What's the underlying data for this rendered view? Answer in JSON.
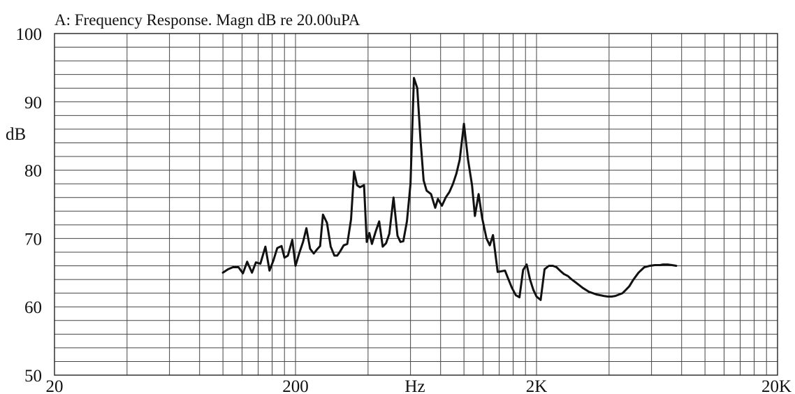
{
  "chart_data": {
    "type": "line",
    "title": "A: Frequency Response. Magn dB re 20.00uPA",
    "xlabel": "Hz",
    "ylabel": "dB",
    "xscale": "log",
    "xlim": [
      20,
      20000
    ],
    "ylim": [
      50,
      100
    ],
    "grid": true,
    "x_tick_labels": [
      {
        "value": 20,
        "label": "20"
      },
      {
        "value": 200,
        "label": "200"
      },
      {
        "value": 2000,
        "label": "2K"
      },
      {
        "value": 20000,
        "label": "20K"
      }
    ],
    "y_ticks": [
      50,
      60,
      70,
      80,
      90,
      100
    ],
    "series": [
      {
        "x": [
          100,
          105,
          110,
          116,
          121,
          126,
          132,
          137,
          143,
          150,
          156,
          162,
          168,
          175,
          180,
          186,
          194,
          200,
          207,
          215,
          222,
          230,
          238,
          247,
          253,
          260,
          270,
          280,
          290,
          298,
          305,
          317,
          328,
          340,
          350,
          360,
          370,
          385,
          395,
          405,
          415,
          430,
          445,
          460,
          475,
          490,
          510,
          530,
          545,
          560,
          580,
          600,
          620,
          640,
          660,
          680,
          700,
          730,
          760,
          780,
          810,
          840,
          870,
          900,
          930,
          960,
          1000,
          1040,
          1080,
          1110,
          1150,
          1190,
          1240,
          1280,
          1320,
          1380,
          1430,
          1480,
          1530,
          1580,
          1640,
          1700,
          1760,
          1820,
          1880,
          1940,
          2000,
          2080,
          2160,
          2250,
          2340,
          2420,
          2520,
          2600,
          2700,
          2800,
          2900,
          3000,
          3100,
          3200,
          3300,
          3420,
          3550,
          3680,
          3800,
          3950,
          4100,
          4250,
          4400,
          4550,
          4700,
          4850,
          5050,
          5300,
          5600,
          5900,
          6200,
          6500,
          6700,
          7000,
          7300,
          7600
        ],
        "y": [
          65.0,
          65.5,
          65.8,
          65.8,
          64.9,
          66.6,
          65.0,
          66.5,
          66.3,
          68.8,
          65.3,
          66.8,
          68.6,
          68.9,
          67.2,
          67.5,
          69.8,
          66.0,
          67.8,
          69.5,
          71.5,
          68.5,
          67.8,
          68.5,
          68.9,
          73.5,
          72.3,
          68.8,
          67.5,
          67.5,
          68.0,
          69.0,
          69.2,
          72.8,
          79.8,
          77.8,
          77.5,
          77.8,
          69.5,
          70.8,
          69.2,
          71.0,
          72.5,
          68.8,
          69.3,
          70.7,
          76.0,
          70.4,
          69.5,
          69.6,
          72.5,
          78.0,
          93.5,
          92.0,
          84.5,
          78.5,
          77.0,
          76.5,
          74.5,
          75.8,
          74.8,
          76.0,
          76.8,
          78.0,
          79.5,
          81.5,
          86.8,
          81.5,
          77.8,
          73.3,
          76.5,
          73.0,
          70.0,
          69.0,
          70.5,
          65.1,
          65.2,
          65.3,
          64.0,
          62.8,
          61.7,
          61.4,
          65.4,
          66.2,
          64.0,
          62.5,
          61.5,
          61.0,
          65.5,
          66.0,
          66.0,
          65.8,
          65.2,
          64.8,
          64.5,
          64.0,
          63.6,
          63.2,
          62.8,
          62.5,
          62.2,
          62.0,
          61.8,
          61.7,
          61.6,
          61.5,
          61.5,
          61.6,
          61.8,
          62.0,
          62.5,
          63.0,
          64.0,
          65.0,
          65.8,
          66.0,
          66.1,
          66.1,
          66.2,
          66.2,
          66.1,
          66.0
        ]
      }
    ]
  }
}
